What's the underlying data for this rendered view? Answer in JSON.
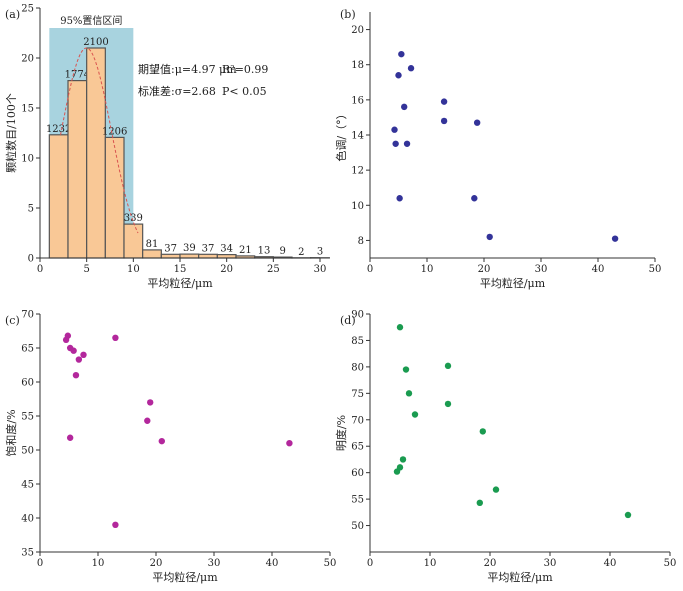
{
  "colors": {
    "axis": "#333333",
    "bar_fill": "#f9c896",
    "bar_stroke": "#555555",
    "ci_band": "#a8d3df",
    "fit_curve": "#d9534f",
    "b_points": "#333399",
    "c_points": "#b3279c",
    "d_points": "#1a9b50"
  },
  "chart_data": [
    {
      "panel": "(a)",
      "type": "bar",
      "bins": [
        [
          1,
          3
        ],
        [
          3,
          5
        ],
        [
          5,
          7
        ],
        [
          7,
          9
        ],
        [
          9,
          11
        ],
        [
          11,
          13
        ],
        [
          13,
          15
        ],
        [
          15,
          17
        ],
        [
          17,
          19
        ],
        [
          19,
          21
        ],
        [
          21,
          23
        ],
        [
          23,
          25
        ],
        [
          25,
          27
        ],
        [
          27,
          29
        ],
        [
          29,
          31
        ]
      ],
      "values": [
        12.32,
        17.74,
        21.0,
        12.06,
        3.39,
        0.81,
        0.37,
        0.39,
        0.37,
        0.34,
        0.21,
        0.13,
        0.09,
        0.02,
        0.03
      ],
      "data_labels": [
        "1232",
        "1774",
        "2100",
        "1206",
        "339",
        "81",
        "37",
        "39",
        "37",
        "34",
        "21",
        "13",
        "9",
        "2",
        "3"
      ],
      "confidence_band": {
        "label": "95%置信区间",
        "x": [
          1,
          10
        ],
        "y": [
          0,
          23
        ]
      },
      "fit_curve": {
        "type": "normal",
        "mean": 4.97,
        "sd": 2.68
      },
      "stats": [
        "期望值:μ=4.97 μm",
        "R²=0.99",
        "标准差:σ=2.68",
        "P< 0.05"
      ],
      "xlabel": "平均粒径/μm",
      "ylabel": "颗粒数目/100个",
      "xlim": [
        0,
        30
      ],
      "ylim": [
        0,
        25
      ],
      "xticks": [
        0,
        5,
        10,
        15,
        20,
        25,
        30
      ],
      "yticks": [
        0,
        5,
        10,
        15,
        20,
        25
      ]
    },
    {
      "panel": "(b)",
      "type": "scatter",
      "x": [
        4.5,
        5.0,
        5.5,
        6.0,
        7.2,
        13.0,
        4.3,
        6.5,
        13.0,
        18.8,
        5.2,
        18.3,
        21.0,
        43.0
      ],
      "y": [
        13.5,
        17.4,
        18.6,
        15.6,
        17.8,
        15.9,
        14.3,
        13.5,
        14.8,
        14.7,
        10.4,
        10.4,
        8.2,
        8.1
      ],
      "xlabel": "平均粒径/μm",
      "ylabel": "色调/（°）",
      "xlim": [
        0,
        50
      ],
      "ylim": [
        7,
        21
      ],
      "xticks": [
        0,
        10,
        20,
        30,
        40,
        50
      ],
      "yticks": [
        8,
        10,
        12,
        14,
        16,
        18,
        20
      ]
    },
    {
      "panel": "(c)",
      "type": "scatter",
      "x": [
        4.5,
        4.8,
        5.2,
        5.8,
        6.2,
        6.7,
        7.5,
        5.2,
        13.0,
        13.0,
        18.5,
        19.0,
        21.0,
        43.0
      ],
      "y": [
        66.2,
        66.8,
        65.0,
        64.6,
        61.0,
        63.3,
        64.0,
        51.8,
        66.5,
        39.0,
        54.3,
        57.0,
        51.3,
        51.0
      ],
      "xlabel": "平均粒径/μm",
      "ylabel": "饱和度/%",
      "xlim": [
        0,
        50
      ],
      "ylim": [
        35,
        70
      ],
      "xticks": [
        0,
        10,
        20,
        30,
        40,
        50
      ],
      "yticks": [
        35,
        40,
        45,
        50,
        55,
        60,
        65,
        70
      ]
    },
    {
      "panel": "(d)",
      "type": "scatter",
      "x": [
        5.0,
        6.0,
        6.5,
        7.5,
        13.0,
        13.0,
        4.5,
        5.0,
        5.5,
        18.8,
        18.3,
        21.0,
        43.0
      ],
      "y": [
        87.5,
        79.5,
        75.0,
        71.0,
        80.2,
        73.0,
        60.2,
        61.0,
        62.5,
        67.8,
        54.3,
        56.8,
        52.0
      ],
      "xlabel": "平均粒径/μm",
      "ylabel": "明度/%",
      "xlim": [
        0,
        50
      ],
      "ylim": [
        45,
        90
      ],
      "xticks": [
        0,
        10,
        20,
        30,
        40,
        50
      ],
      "yticks": [
        50,
        55,
        60,
        65,
        70,
        75,
        80,
        85,
        90
      ]
    }
  ]
}
